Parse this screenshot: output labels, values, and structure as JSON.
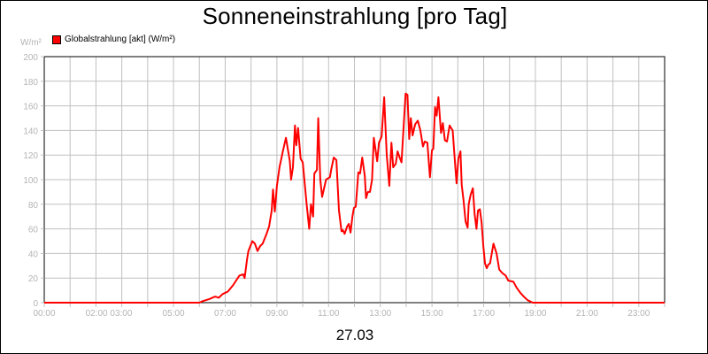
{
  "title": "Sonneneinstrahlung [pro Tag]",
  "unit_label": "W/m²",
  "date_label": "27.03",
  "legend": [
    {
      "label": "Globalstrahlung [akt] (W/m²)",
      "color": "#ff0000"
    }
  ],
  "colors": {
    "series": "#ff0000",
    "grid": "#c0c0c0",
    "axis": "#000000",
    "tick_text": "#b4b4b4"
  },
  "chart_data": {
    "type": "line",
    "title": "Sonneneinstrahlung [pro Tag]",
    "xlabel": "27.03",
    "ylabel": "W/m²",
    "ylim": [
      0,
      200
    ],
    "xlim_hours": [
      0,
      24
    ],
    "grid": true,
    "legend_position": "top-left",
    "y_ticks": [
      0,
      20,
      40,
      60,
      80,
      100,
      120,
      140,
      160,
      180,
      200
    ],
    "x_tick_labels": [
      "00:00",
      "02:00 03:00",
      "05:00",
      "07:00",
      "09:00",
      "11:00",
      "13:00",
      "15:00",
      "17:00",
      "19:00",
      "21:00",
      "23:00"
    ],
    "x_tick_label_hours": [
      0,
      2.5,
      5,
      7,
      9,
      11,
      13,
      15,
      17,
      19,
      21,
      23
    ],
    "series": [
      {
        "name": "Globalstrahlung [akt] (W/m²)",
        "color": "#ff0000",
        "x_hours": [
          0,
          6.0,
          6.1,
          6.4,
          6.6,
          6.75,
          6.9,
          7.1,
          7.3,
          7.55,
          7.7,
          7.75,
          7.85,
          7.9,
          8.05,
          8.15,
          8.25,
          8.35,
          8.45,
          8.6,
          8.7,
          8.8,
          8.85,
          8.92,
          9.0,
          9.1,
          9.25,
          9.35,
          9.5,
          9.55,
          9.62,
          9.7,
          9.75,
          9.82,
          9.92,
          10.0,
          10.15,
          10.25,
          10.32,
          10.4,
          10.45,
          10.55,
          10.6,
          10.68,
          10.75,
          10.9,
          11.05,
          11.1,
          11.2,
          11.3,
          11.4,
          11.5,
          11.55,
          11.62,
          11.72,
          11.78,
          11.85,
          11.92,
          11.98,
          12.05,
          12.15,
          12.22,
          12.3,
          12.4,
          12.45,
          12.52,
          12.6,
          12.68,
          12.75,
          12.88,
          12.95,
          13.05,
          13.15,
          13.25,
          13.35,
          13.43,
          13.5,
          13.6,
          13.67,
          13.75,
          13.82,
          13.88,
          13.98,
          14.05,
          14.12,
          14.18,
          14.25,
          14.35,
          14.45,
          14.55,
          14.65,
          14.72,
          14.82,
          14.92,
          15.0,
          15.05,
          15.12,
          15.18,
          15.25,
          15.35,
          15.42,
          15.5,
          15.58,
          15.68,
          15.8,
          15.88,
          15.95,
          16.02,
          16.1,
          16.15,
          16.22,
          16.3,
          16.38,
          16.42,
          16.5,
          16.58,
          16.65,
          16.72,
          16.78,
          16.85,
          16.92,
          16.98,
          17.05,
          17.12,
          17.18,
          17.25,
          17.32,
          17.38,
          17.5,
          17.6,
          17.72,
          17.85,
          17.95,
          18.15,
          18.28,
          18.42,
          18.55,
          18.7,
          18.9,
          24
        ],
        "values": [
          0,
          0,
          1,
          3,
          5,
          4,
          7,
          9,
          14,
          22,
          23,
          20,
          36,
          42,
          50,
          48,
          42,
          46,
          48,
          56,
          62,
          75,
          92,
          74,
          95,
          110,
          125,
          134,
          115,
          100,
          110,
          144,
          128,
          142,
          117,
          114,
          80,
          60,
          80,
          70,
          105,
          108,
          150,
          100,
          86,
          100,
          102,
          108,
          118,
          116,
          75,
          58,
          59,
          56,
          62,
          64,
          57,
          70,
          77,
          78,
          106,
          105,
          118,
          103,
          85,
          90,
          90,
          100,
          134,
          115,
          130,
          135,
          167,
          120,
          95,
          130,
          110,
          113,
          123,
          118,
          114,
          135,
          170,
          169,
          133,
          150,
          136,
          145,
          148,
          140,
          127,
          131,
          130,
          102,
          124,
          125,
          159,
          152,
          167,
          138,
          146,
          132,
          131,
          144,
          140,
          117,
          97,
          117,
          123,
          96,
          83,
          66,
          61,
          80,
          88,
          93,
          72,
          60,
          75,
          76,
          65,
          47,
          32,
          28,
          31,
          32,
          41,
          48,
          40,
          27,
          24,
          22,
          18,
          17,
          12,
          8,
          5,
          2,
          0,
          0
        ]
      }
    ]
  }
}
